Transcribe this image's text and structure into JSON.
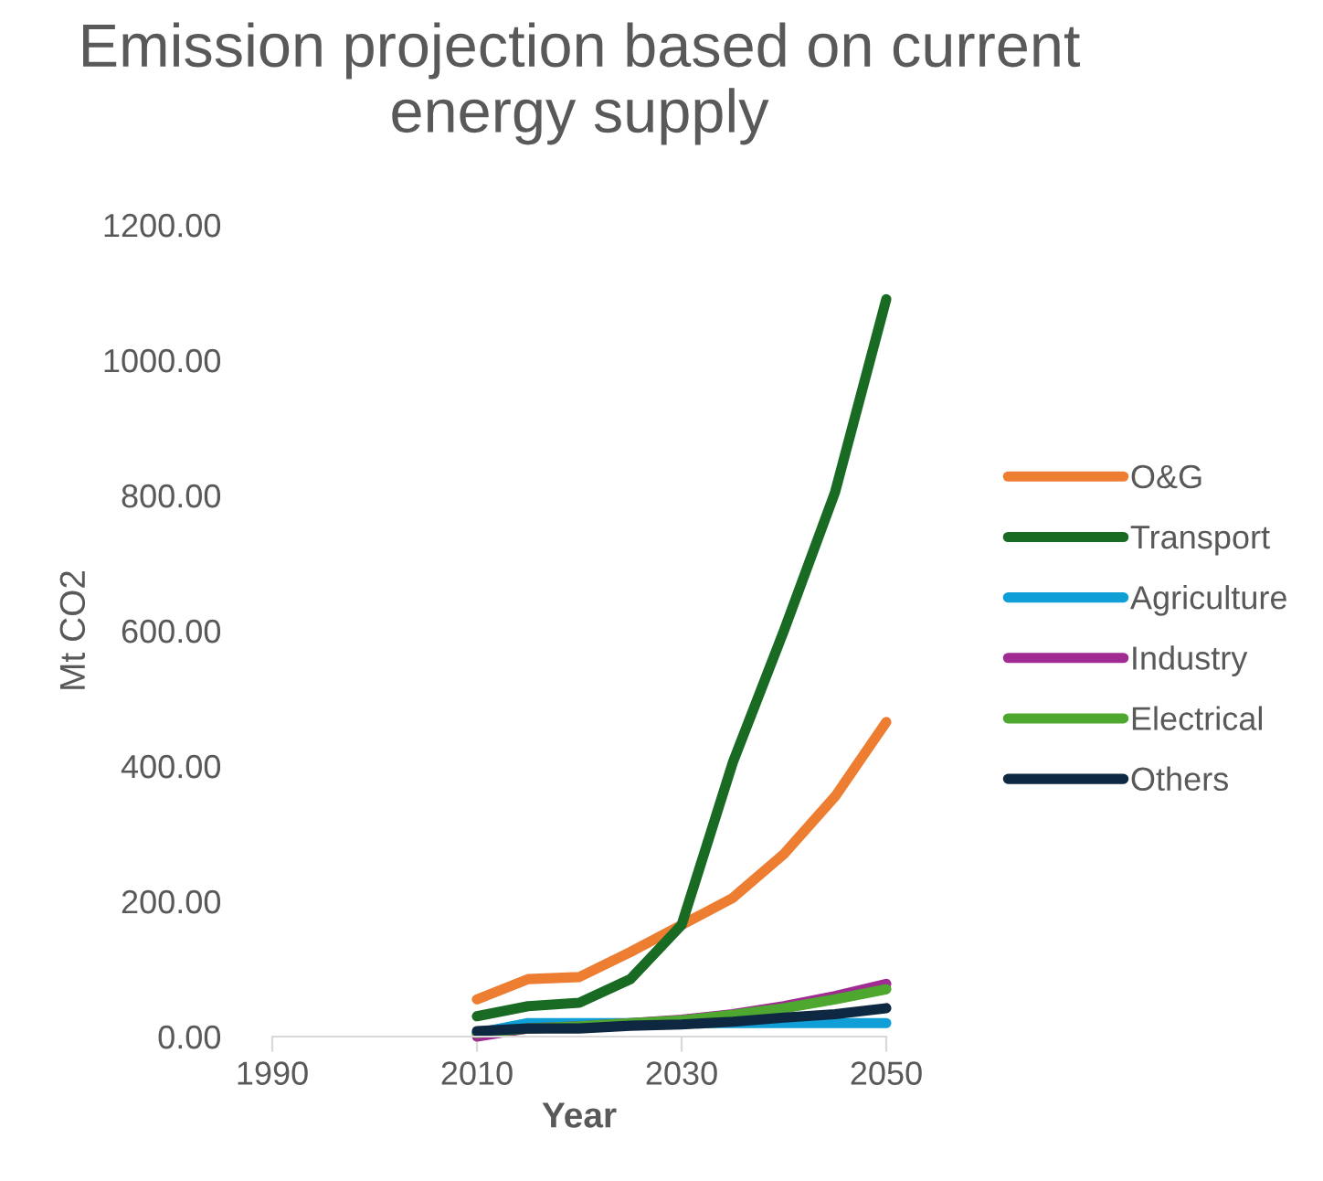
{
  "chart_data": {
    "type": "line",
    "title": "Emission projection based on current energy supply",
    "xlabel": "Year",
    "ylabel": "Mt CO2",
    "x": [
      2010,
      2015,
      2020,
      2025,
      2030,
      2035,
      2040,
      2045,
      2050
    ],
    "xlim": [
      1990,
      2050
    ],
    "xticks": [
      1990,
      2010,
      2030,
      2050
    ],
    "ylim": [
      0,
      1200
    ],
    "yticks": [
      {
        "value": 0,
        "label": "0.00"
      },
      {
        "value": 200,
        "label": "200.00"
      },
      {
        "value": 400,
        "label": "400.00"
      },
      {
        "value": 600,
        "label": "600.00"
      },
      {
        "value": 800,
        "label": "800.00"
      },
      {
        "value": 1000,
        "label": "1000.00"
      },
      {
        "value": 1200,
        "label": "1200.00"
      }
    ],
    "grid": false,
    "legend": "right",
    "marker": "none",
    "line_style": "solid",
    "series": [
      {
        "name": "O&G",
        "color": "#ed7d31",
        "values": [
          55,
          85,
          88,
          125,
          165,
          205,
          270,
          355,
          465
        ]
      },
      {
        "name": "Transport",
        "color": "#196b24",
        "values": [
          30,
          45,
          50,
          85,
          165,
          405,
          600,
          805,
          1090
        ]
      },
      {
        "name": "Agriculture",
        "color": "#0f9ed5",
        "values": [
          5,
          20,
          20,
          20,
          20,
          20,
          20,
          20,
          20
        ]
      },
      {
        "name": "Industry",
        "color": "#a02b93",
        "values": [
          0,
          12,
          15,
          20,
          25,
          33,
          45,
          60,
          78
        ]
      },
      {
        "name": "Electrical",
        "color": "#4ea72e",
        "values": [
          5,
          12,
          15,
          20,
          24,
          32,
          42,
          55,
          70
        ]
      },
      {
        "name": "Others",
        "color": "#0e2841",
        "values": [
          8,
          12,
          12,
          16,
          18,
          22,
          28,
          33,
          42
        ]
      }
    ]
  }
}
